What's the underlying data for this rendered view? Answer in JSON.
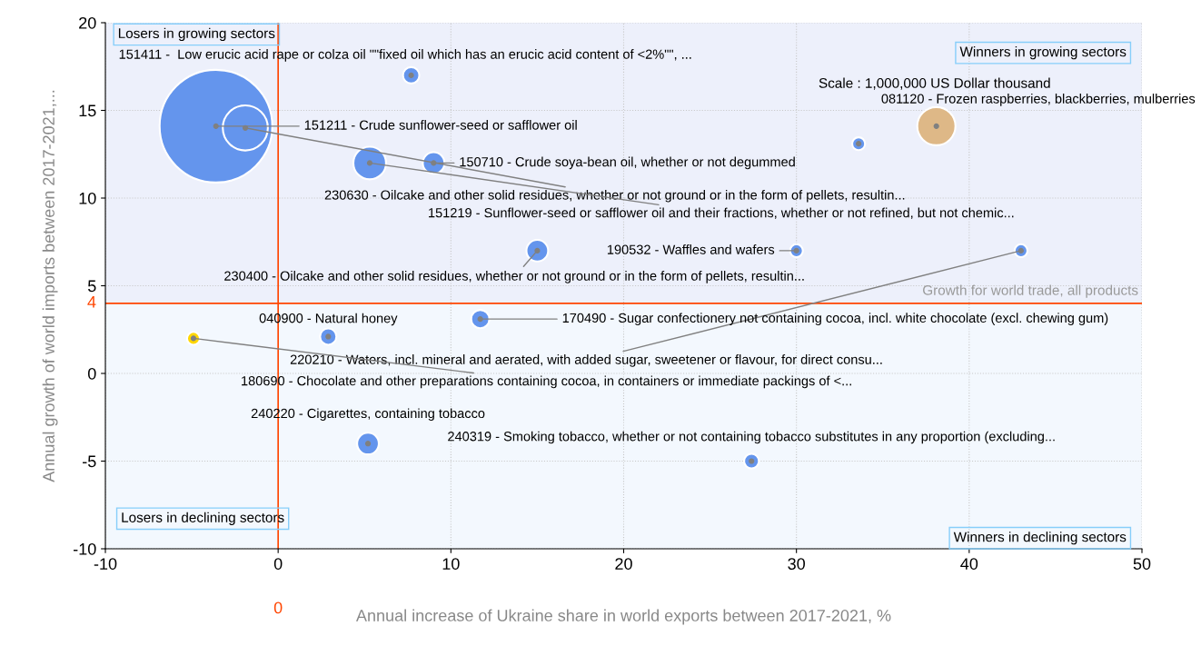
{
  "chart_data": {
    "type": "bubble",
    "xlabel": "Annual increase of Ukraine share in world exports between 2017-2021, %",
    "ylabel": "Annual growth of world imports between 2017-2021,...",
    "xlim": [
      -10,
      50
    ],
    "xticks": [
      -10,
      0,
      10,
      20,
      30,
      40,
      50
    ],
    "ylim": [
      -10,
      20
    ],
    "yticks": [
      -10,
      -5,
      0,
      5,
      10,
      15,
      20
    ],
    "grid": true,
    "legend": false,
    "ref_lines": [
      {
        "axis": "x",
        "value": 0,
        "label": "0",
        "color": "#ff4500"
      },
      {
        "axis": "y",
        "value": 4,
        "label": "4",
        "color": "#ff4500"
      }
    ],
    "bands": [
      {
        "axis": "y",
        "from": 4,
        "to": 20,
        "color": "#edf0fb"
      }
    ],
    "annotations": [
      "Losers in growing sectors",
      "Winners in growing sectors",
      "Losers in declining sectors",
      "Winners in declining sectors",
      "Scale : 1,000,000 US Dollar thousand",
      {
        "text": "Growth for world trade, all products",
        "x": 50,
        "y": 4
      }
    ],
    "series": [
      {
        "name": "151211 - Crude sunflower-seed or safflower oil",
        "color": "#6495ed",
        "x": [
          -3.6
        ],
        "values": [
          14.1
        ],
        "sizes": [
          1
        ]
      },
      {
        "name": "230630 - Oilcake and other solid residues, whether or not ground or in the form of pellets, resultin...",
        "color": "#6495ed",
        "x": [
          -1.9
        ],
        "values": [
          14.0
        ],
        "sizes": [
          0.16
        ]
      },
      {
        "name": "151411 -  Low erucic acid rape or colza oil \"\"fixed oil which has an erucic acid content of <2%\"\", ...",
        "color": "#6495ed",
        "x": [
          7.7
        ],
        "values": [
          17.0
        ],
        "sizes": [
          0.021
        ]
      },
      {
        "name": "151219 - Sunflower-seed or safflower oil and their fractions, whether or not refined, but not chemic...",
        "color": "#6495ed",
        "x": [
          5.3
        ],
        "values": [
          12.0
        ],
        "sizes": [
          0.084
        ]
      },
      {
        "name": "150710 - Crude soya-bean oil, whether or not degummed",
        "color": "#6495ed",
        "x": [
          9.0
        ],
        "values": [
          12.0
        ],
        "sizes": [
          0.037
        ]
      },
      {
        "name": "230400 - Oilcake and other solid residues, whether or not ground or in the form of pellets, resultin...",
        "color": "#6495ed",
        "x": [
          15.0
        ],
        "values": [
          7.0
        ],
        "sizes": [
          0.037
        ]
      },
      {
        "name": "190532 - Waffles and wafers",
        "color": "#6495ed",
        "x": [
          30.0
        ],
        "values": [
          7.0
        ],
        "sizes": [
          0.013
        ]
      },
      {
        "name": "220210 - Waters, incl. mineral and aerated, with added sugar, sweetener or flavour, for direct consu...",
        "color": "#6495ed",
        "x": [
          43.0
        ],
        "values": [
          7.0
        ],
        "sizes": [
          0.013
        ]
      },
      {
        "name": "081120 - Frozen raspberries, blackberries, mulberries",
        "color": "#deb887",
        "x": [
          38.1
        ],
        "values": [
          14.1
        ],
        "sizes": [
          0.115
        ]
      },
      {
        "color": "#6495ed",
        "x": [
          33.6
        ],
        "values": [
          13.1
        ],
        "sizes": [
          0.013
        ]
      },
      {
        "name": "170490 - Sugar confectionery not containing cocoa, incl. white chocolate (excl. chewing gum)",
        "color": "#6495ed",
        "x": [
          11.7
        ],
        "values": [
          3.1
        ],
        "sizes": [
          0.026
        ]
      },
      {
        "name": "040900 - Natural honey",
        "color": "#6495ed",
        "x": [
          2.9
        ],
        "values": [
          2.1
        ],
        "sizes": [
          0.021
        ]
      },
      {
        "name": "180690 - Chocolate and other preparations containing cocoa, in containers or immediate packings of <...",
        "color": "#ffd700",
        "x": [
          -4.9
        ],
        "values": [
          2.0
        ],
        "sizes": [
          0.013
        ]
      },
      {
        "name": "240220 - Cigarettes, containing tobacco",
        "color": "#6495ed",
        "x": [
          5.2
        ],
        "values": [
          -4.0
        ],
        "sizes": [
          0.037
        ]
      },
      {
        "name": "240319 - Smoking tobacco, whether or not containing tobacco substitutes in any proportion (excluding...",
        "color": "#6495ed",
        "x": [
          27.4
        ],
        "values": [
          -5.0
        ],
        "sizes": [
          0.017
        ]
      }
    ]
  }
}
